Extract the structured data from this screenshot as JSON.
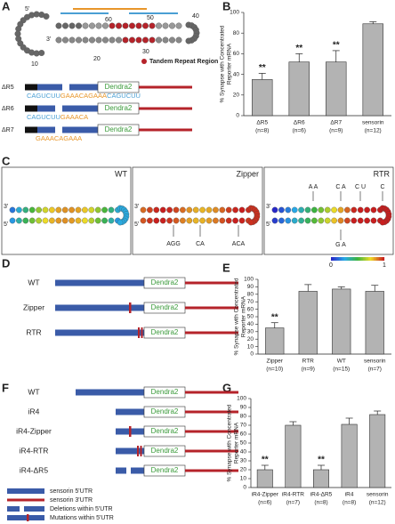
{
  "panel_labels": [
    "A",
    "B",
    "C",
    "D",
    "E",
    "F",
    "G"
  ],
  "panel_a": {
    "ends": [
      "5'",
      "3'"
    ],
    "positions": [
      "10",
      "20",
      "30",
      "40",
      "50",
      "60"
    ],
    "legend": "Tandem Repeat Region",
    "reporter": "Dendra2",
    "constructs": [
      {
        "name": "ΔR5",
        "segments": [
          "CAGUCUU",
          "GAAACAGAAA",
          "CAGUCUU"
        ]
      },
      {
        "name": "ΔR6",
        "segments": [
          "CAGUCUU",
          "GAAACA"
        ]
      },
      {
        "name": "ΔR7",
        "segments": [
          "GAAACAGAAA"
        ]
      }
    ]
  },
  "panel_c": {
    "structures": [
      "WT",
      "Zipper",
      "RTR"
    ],
    "ends": [
      "3'",
      "5'"
    ],
    "zipper_mutations": [
      "AGG",
      "CA",
      "ACA"
    ],
    "rtr_mutations": [
      "A A",
      "C A",
      "C U",
      "C",
      "G A"
    ],
    "scale": [
      0,
      1
    ]
  },
  "panel_d": {
    "constructs": [
      "WT",
      "Zipper",
      "RTR"
    ],
    "reporter": "Dendra2"
  },
  "panel_f": {
    "constructs": [
      "WT",
      "iR4",
      "iR4-Zipper",
      "iR4-RTR",
      "iR4-ΔR5"
    ],
    "reporter": "Dendra2",
    "legend": [
      "sensorin 5'UTR",
      "sensorin 3'UTR",
      "Deletions within 5'UTR",
      "Mutations within 5'UTR"
    ]
  },
  "chart_data": [
    {
      "type": "bar",
      "y_label": [
        "% Synapse with Concentrated",
        "Reporter mRNA"
      ],
      "color": "#b3b3b3",
      "categories": [
        "ΔR5",
        "ΔR6",
        "ΔR7",
        "sensorin"
      ],
      "sample_sizes": [
        "(n=8)",
        "(n=6)",
        "(n=9)",
        "(n=12)"
      ],
      "values": [
        35,
        52,
        52,
        89
      ],
      "errors": [
        6,
        8,
        11,
        2
      ],
      "significance": [
        "**",
        "**",
        "**",
        null
      ],
      "ylim": [
        0,
        100
      ],
      "yticks": [
        0,
        20,
        40,
        60,
        80,
        100
      ]
    },
    {
      "type": "bar",
      "y_label": [
        "% Synapse with Concentrated",
        "Reporter mRNA"
      ],
      "color": "#b3b3b3",
      "categories": [
        "Zipper",
        "RTR",
        "WT",
        "sensorin"
      ],
      "sample_sizes": [
        "(n=10)",
        "(n=9)",
        "(n=15)",
        "(n=7)"
      ],
      "values": [
        35,
        84,
        87,
        84
      ],
      "errors": [
        7,
        9,
        3,
        8
      ],
      "significance": [
        "**",
        null,
        null,
        null
      ],
      "ylim": [
        0,
        100
      ],
      "yticks": [
        0,
        10,
        20,
        30,
        40,
        50,
        60,
        70,
        80,
        90,
        100
      ]
    },
    {
      "type": "bar",
      "y_label": [
        "% Synapse with Concentrated",
        "Reporter mRNA"
      ],
      "color": "#b3b3b3",
      "categories": [
        "iR4-Zipper",
        "iR4-RTR",
        "iR4-ΔR5",
        "iR4",
        "sensorin"
      ],
      "sample_sizes": [
        "(n=6)",
        "(n=7)",
        "(n=8)",
        "(n=8)",
        "(n=12)"
      ],
      "values": [
        20,
        70,
        20,
        71,
        82
      ],
      "errors": [
        5,
        4,
        5,
        7,
        4
      ],
      "significance": [
        "**",
        null,
        "**",
        null,
        null
      ],
      "ylim": [
        0,
        100
      ],
      "yticks": [
        0,
        10,
        20,
        30,
        40,
        50,
        60,
        70,
        80,
        90,
        100
      ]
    }
  ]
}
